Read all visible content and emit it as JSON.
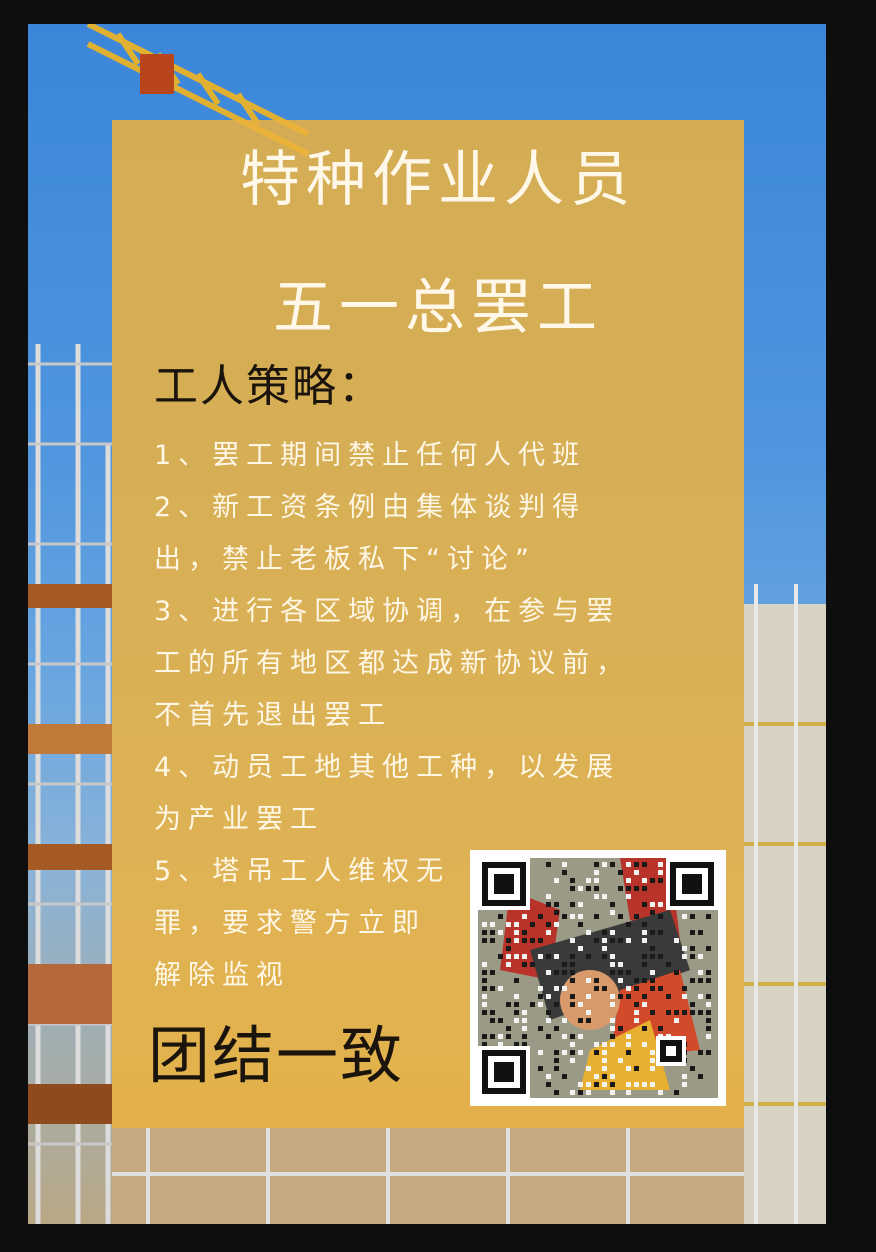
{
  "poster": {
    "title_line1": "特种作业人员",
    "title_line2": "五一总罢工",
    "heading": "工人策略：",
    "items": [
      "1、罢工期间禁止任何人代班",
      "2、新工资条例由集体谈判得出，禁止老板私下“讨论”",
      "3、进行各区域协调，在参与罢工的所有地区都达成新协议前，不首先退出罢工",
      "4、动员工地其他工种，以发展为产业罢工",
      "5、塔吊工人维权无罪，要求警方立即解除监视"
    ],
    "footer": "团结一致"
  },
  "colors": {
    "panel": "#ecb23e",
    "title_text": "#fff8e8",
    "dark_text": "#1a140c",
    "sky": "#3b86da"
  }
}
